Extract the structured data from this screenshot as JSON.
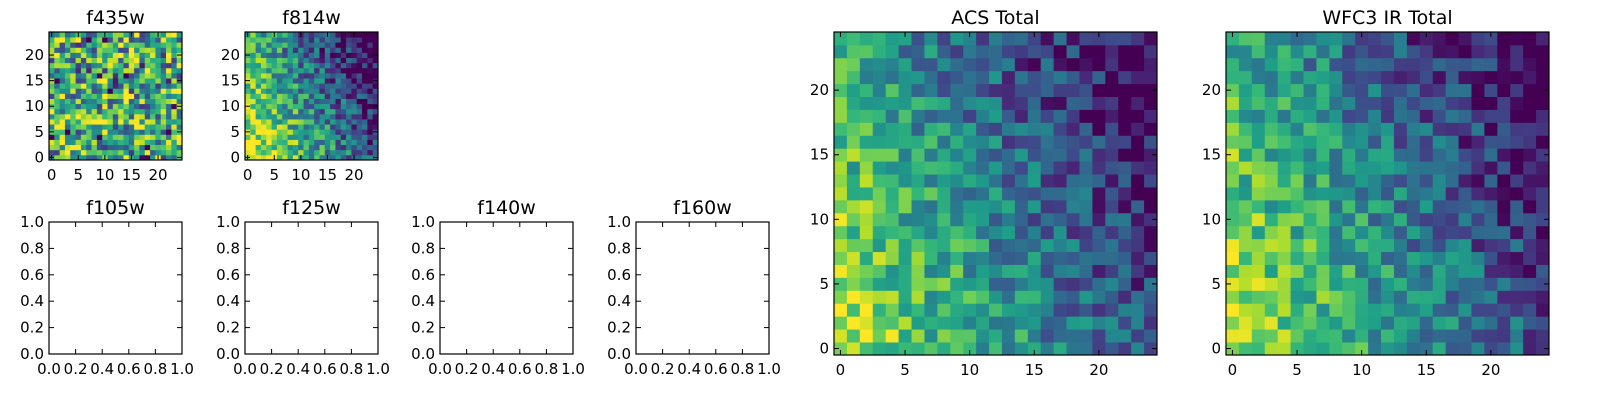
{
  "colormap": "viridis",
  "chart_data": [
    {
      "type": "heatmap",
      "title": "f435w",
      "grid": [
        25,
        25
      ],
      "pattern": "noise",
      "gradient_strength": 0.0,
      "noise": 0.45,
      "offset": 0.62,
      "seed": 11,
      "xticks": [
        "0",
        "5",
        "10",
        "15",
        "20"
      ],
      "yticks": [
        "0",
        "5",
        "10",
        "15",
        "20"
      ],
      "xlim": [
        0,
        24
      ],
      "ylim": [
        0,
        24
      ]
    },
    {
      "type": "heatmap",
      "title": "f814w",
      "grid": [
        25,
        25
      ],
      "pattern": "gradient",
      "gradient_strength": 1.0,
      "noise": 0.28,
      "offset": 0.0,
      "seed": 23,
      "xticks": [
        "0",
        "5",
        "10",
        "15",
        "20"
      ],
      "yticks": [
        "0",
        "5",
        "10",
        "15",
        "20"
      ],
      "xlim": [
        0,
        24
      ],
      "ylim": [
        0,
        24
      ]
    },
    {
      "type": "empty",
      "title": "f105w",
      "xticks": [
        "0.0",
        "0.2",
        "0.4",
        "0.6",
        "0.8",
        "1.0"
      ],
      "yticks": [
        "0.0",
        "0.2",
        "0.4",
        "0.6",
        "0.8",
        "1.0"
      ],
      "xlim": [
        0,
        1
      ],
      "ylim": [
        0,
        1
      ]
    },
    {
      "type": "empty",
      "title": "f125w",
      "xticks": [
        "0.0",
        "0.2",
        "0.4",
        "0.6",
        "0.8",
        "1.0"
      ],
      "yticks": [
        "0.0",
        "0.2",
        "0.4",
        "0.6",
        "0.8",
        "1.0"
      ],
      "xlim": [
        0,
        1
      ],
      "ylim": [
        0,
        1
      ]
    },
    {
      "type": "empty",
      "title": "f140w",
      "xticks": [
        "0.0",
        "0.2",
        "0.4",
        "0.6",
        "0.8",
        "1.0"
      ],
      "yticks": [
        "0.0",
        "0.2",
        "0.4",
        "0.6",
        "0.8",
        "1.0"
      ],
      "xlim": [
        0,
        1
      ],
      "ylim": [
        0,
        1
      ]
    },
    {
      "type": "empty",
      "title": "f160w",
      "xticks": [
        "0.0",
        "0.2",
        "0.4",
        "0.6",
        "0.8",
        "1.0"
      ],
      "yticks": [
        "0.0",
        "0.2",
        "0.4",
        "0.6",
        "0.8",
        "1.0"
      ],
      "xlim": [
        0,
        1
      ],
      "ylim": [
        0,
        1
      ]
    },
    {
      "type": "heatmap",
      "title": "ACS Total",
      "grid": [
        25,
        25
      ],
      "pattern": "gradient",
      "gradient_strength": 0.85,
      "noise": 0.22,
      "offset": 0.05,
      "seed": 37,
      "xticks": [
        "0",
        "5",
        "10",
        "15",
        "20"
      ],
      "yticks": [
        "0",
        "5",
        "10",
        "15",
        "20"
      ],
      "xlim": [
        0,
        24
      ],
      "ylim": [
        0,
        24
      ]
    },
    {
      "type": "heatmap",
      "title": "WFC3 IR Total",
      "grid": [
        25,
        25
      ],
      "pattern": "gradient",
      "gradient_strength": 0.85,
      "noise": 0.22,
      "offset": 0.05,
      "seed": 53,
      "xticks": [
        "0",
        "5",
        "10",
        "15",
        "20"
      ],
      "yticks": [
        "0",
        "5",
        "10",
        "15",
        "20"
      ],
      "xlim": [
        0,
        24
      ],
      "ylim": [
        0,
        24
      ]
    }
  ]
}
